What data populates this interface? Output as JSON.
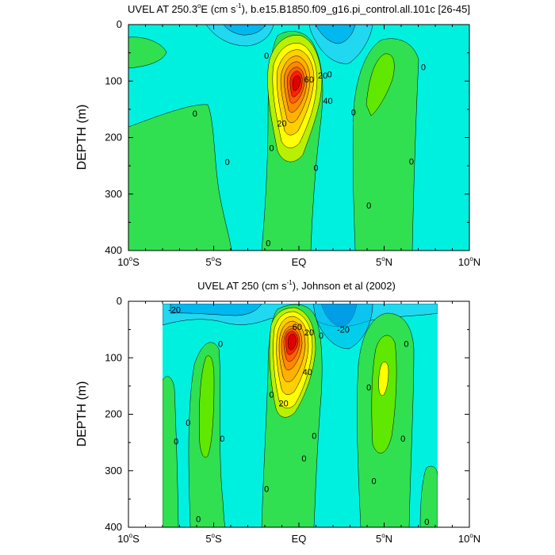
{
  "chart_data": [
    {
      "type": "contour",
      "title_parts": [
        "UVEL AT 250.3",
        "o",
        "E (cm s",
        "-1",
        "), b.e15.B1850.f09_g16.pi_control.all.101c [26-45]"
      ],
      "xlabel": "",
      "ylabel": "DEPTH (m)",
      "xlim": [
        -10,
        10
      ],
      "ylim": [
        400,
        0
      ],
      "x_ticks": [
        {
          "value": -10,
          "num": "10",
          "deg": "o",
          "hemi": "S"
        },
        {
          "value": -5,
          "num": "5",
          "deg": "o",
          "hemi": "S"
        },
        {
          "value": 0,
          "num": "EQ",
          "deg": "",
          "hemi": ""
        },
        {
          "value": 5,
          "num": "5",
          "deg": "o",
          "hemi": "N"
        },
        {
          "value": 10,
          "num": "10",
          "deg": "o",
          "hemi": "N"
        }
      ],
      "y_ticks": [
        0,
        100,
        200,
        300,
        400
      ],
      "contour_labels": [
        {
          "x": -1.9,
          "y": 55,
          "text": "0"
        },
        {
          "x": -1.6,
          "y": 218,
          "text": "0"
        },
        {
          "x": -1.8,
          "y": 387,
          "text": "0"
        },
        {
          "x": -6.1,
          "y": 157,
          "text": "0"
        },
        {
          "x": -4.2,
          "y": 243,
          "text": "0"
        },
        {
          "x": 0.6,
          "y": 97,
          "text": "60"
        },
        {
          "x": 1.4,
          "y": 90,
          "text": "20"
        },
        {
          "x": 1.8,
          "y": 88,
          "text": "0"
        },
        {
          "x": 1.7,
          "y": 135,
          "text": "40"
        },
        {
          "x": -1.0,
          "y": 175,
          "text": "20"
        },
        {
          "x": 1.0,
          "y": 253,
          "text": "0"
        },
        {
          "x": 3.2,
          "y": 155,
          "text": "0"
        },
        {
          "x": 4.1,
          "y": 320,
          "text": "0"
        },
        {
          "x": 7.3,
          "y": 75,
          "text": "0"
        },
        {
          "x": 6.6,
          "y": 242,
          "text": "0"
        }
      ],
      "fill_region_xlim": [
        -10,
        10
      ]
    },
    {
      "type": "contour",
      "title_parts": [
        "UVEL AT 250 (cm s",
        "-1",
        "), Johnson et al (2002)"
      ],
      "xlabel": "",
      "ylabel": "DEPTH (m)",
      "xlim": [
        -10,
        10
      ],
      "ylim": [
        400,
        0
      ],
      "x_ticks": [
        {
          "value": -10,
          "num": "10",
          "deg": "o",
          "hemi": "S"
        },
        {
          "value": -5,
          "num": "5",
          "deg": "o",
          "hemi": "S"
        },
        {
          "value": 0,
          "num": "EQ",
          "deg": "",
          "hemi": ""
        },
        {
          "value": 5,
          "num": "5",
          "deg": "o",
          "hemi": "N"
        },
        {
          "value": 10,
          "num": "10",
          "deg": "o",
          "hemi": "N"
        }
      ],
      "y_ticks": [
        0,
        100,
        200,
        300,
        400
      ],
      "contour_labels": [
        {
          "x": -7.3,
          "y": 15,
          "text": "-20"
        },
        {
          "x": 2.6,
          "y": 50,
          "text": "-20"
        },
        {
          "x": -0.1,
          "y": 45,
          "text": "60"
        },
        {
          "x": 0.6,
          "y": 55,
          "text": "20"
        },
        {
          "x": 1.3,
          "y": 60,
          "text": "0"
        },
        {
          "x": 0.5,
          "y": 125,
          "text": "40"
        },
        {
          "x": -0.9,
          "y": 180,
          "text": "20"
        },
        {
          "x": -1.6,
          "y": 165,
          "text": "0"
        },
        {
          "x": -4.6,
          "y": 75,
          "text": "0"
        },
        {
          "x": -6.5,
          "y": 215,
          "text": "0"
        },
        {
          "x": -4.5,
          "y": 243,
          "text": "0"
        },
        {
          "x": -7.2,
          "y": 248,
          "text": "0"
        },
        {
          "x": -5.9,
          "y": 385,
          "text": "0"
        },
        {
          "x": -1.9,
          "y": 332,
          "text": "0"
        },
        {
          "x": 0.9,
          "y": 238,
          "text": "0"
        },
        {
          "x": 0.3,
          "y": 278,
          "text": "0"
        },
        {
          "x": 4.1,
          "y": 152,
          "text": "0"
        },
        {
          "x": 4.4,
          "y": 318,
          "text": "0"
        },
        {
          "x": 6.3,
          "y": 75,
          "text": "0"
        },
        {
          "x": 6.1,
          "y": 243,
          "text": "0"
        },
        {
          "x": 7.5,
          "y": 390,
          "text": "0"
        }
      ],
      "fill_region_xlim": [
        -7.9,
        8.2
      ]
    }
  ],
  "palette": {
    "base": "#00f0e0",
    "cyan_light": "#20d8f0",
    "cyan": "#00b8f0",
    "blue": "#0078d8",
    "green_mid": "#10d8a0",
    "green": "#30e050",
    "green_bright": "#60e800",
    "lime": "#b8f000",
    "yellow": "#ffff00",
    "yellow_orange": "#ffd000",
    "orange_light": "#ffb000",
    "orange": "#ff8800",
    "orange_dark": "#ff6000",
    "red": "#ff2000",
    "red_dark": "#e00000"
  }
}
